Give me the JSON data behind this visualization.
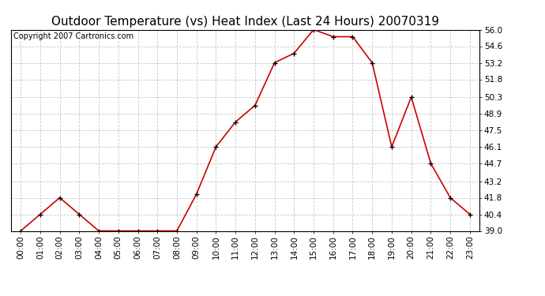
{
  "title": "Outdoor Temperature (vs) Heat Index (Last 24 Hours) 20070319",
  "copyright_text": "Copyright 2007 Cartronics.com",
  "x_labels": [
    "00:00",
    "01:00",
    "02:00",
    "03:00",
    "04:00",
    "05:00",
    "06:00",
    "07:00",
    "08:00",
    "09:00",
    "10:00",
    "11:00",
    "12:00",
    "13:00",
    "14:00",
    "15:00",
    "16:00",
    "17:00",
    "18:00",
    "19:00",
    "20:00",
    "21:00",
    "22:00",
    "23:00"
  ],
  "y_values": [
    39.0,
    40.4,
    41.8,
    40.4,
    39.0,
    39.0,
    39.0,
    39.0,
    39.0,
    42.1,
    46.1,
    48.2,
    49.6,
    53.2,
    54.0,
    56.0,
    55.4,
    55.4,
    53.2,
    46.1,
    50.3,
    44.7,
    41.8,
    40.4
  ],
  "line_color": "#cc0000",
  "marker_color": "#000000",
  "bg_color": "#ffffff",
  "grid_color": "#c8c8c8",
  "ylim_min": 39.0,
  "ylim_max": 56.0,
  "ytick_values": [
    39.0,
    40.4,
    41.8,
    43.2,
    44.7,
    46.1,
    47.5,
    48.9,
    50.3,
    51.8,
    53.2,
    54.6,
    56.0
  ],
  "title_fontsize": 11,
  "copyright_fontsize": 7,
  "tick_fontsize": 7.5,
  "fig_width": 6.9,
  "fig_height": 3.75,
  "dpi": 100
}
